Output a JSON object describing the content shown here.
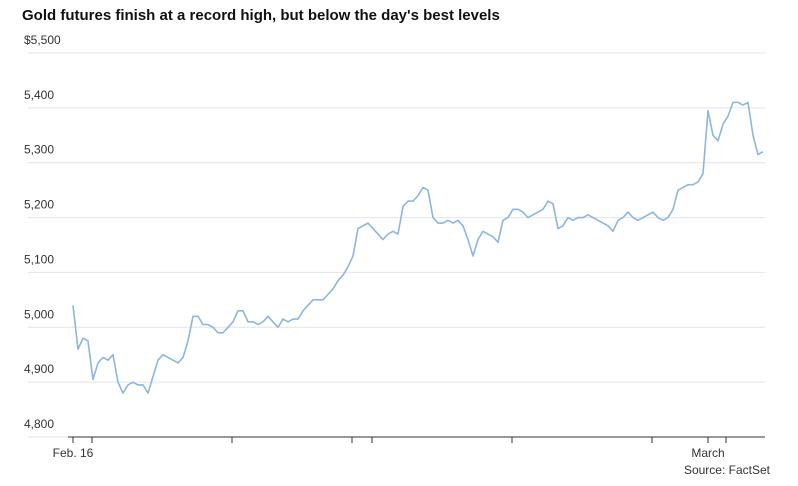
{
  "chart_data": {
    "type": "line",
    "title": "Gold futures finish at a record high, but below the day's best levels",
    "source": "Source: FactSet",
    "categories": [
      "Feb. 16",
      null,
      null,
      null,
      null,
      null,
      null,
      null,
      null,
      null,
      null,
      null,
      null,
      null,
      null,
      null,
      null,
      null,
      null,
      null,
      null,
      null,
      null,
      null,
      null,
      null,
      null,
      null,
      null,
      null,
      null,
      null,
      null,
      null,
      null,
      null,
      null,
      null,
      null,
      null,
      null,
      null,
      null,
      null,
      null,
      null,
      null,
      null,
      null,
      null,
      null,
      null,
      null,
      null,
      null,
      null,
      null,
      null,
      null,
      null,
      null,
      null,
      null,
      null,
      null,
      null,
      null,
      null,
      null,
      null,
      null,
      null,
      null,
      null,
      null,
      null,
      null,
      null,
      null,
      null,
      null,
      null,
      null,
      null,
      null,
      null,
      null,
      null,
      null,
      null,
      null,
      null,
      null,
      null,
      null,
      null,
      null,
      null,
      null,
      null,
      null,
      null,
      null,
      null,
      null,
      null,
      null,
      null,
      null,
      null,
      null,
      null,
      null,
      null,
      null,
      null,
      null,
      null,
      null,
      null,
      null,
      null,
      null,
      null,
      null,
      null,
      null,
      "March",
      null,
      null,
      null,
      null,
      null,
      null,
      null,
      null,
      null,
      null,
      null
    ],
    "series": [
      {
        "name": "Gold futures",
        "color": "#8cb6e0",
        "values": [
          5040,
          4960,
          4980,
          4975,
          4905,
          4935,
          4945,
          4940,
          4950,
          4900,
          4880,
          4895,
          4900,
          4895,
          4895,
          4880,
          4910,
          4940,
          4950,
          4945,
          4940,
          4935,
          4945,
          4975,
          5020,
          5020,
          5005,
          5005,
          5000,
          4990,
          4990,
          5000,
          5010,
          5030,
          5030,
          5010,
          5010,
          5005,
          5010,
          5020,
          5010,
          5000,
          5015,
          5010,
          5015,
          5015,
          5030,
          5040,
          5050,
          5050,
          5050,
          5060,
          5070,
          5085,
          5095,
          5110,
          5130,
          5180,
          5185,
          5190,
          5180,
          5170,
          5160,
          5170,
          5175,
          5170,
          5220,
          5230,
          5230,
          5240,
          5255,
          5250,
          5200,
          5190,
          5190,
          5195,
          5190,
          5195,
          5185,
          5160,
          5130,
          5160,
          5175,
          5170,
          5165,
          5155,
          5195,
          5200,
          5215,
          5215,
          5210,
          5200,
          5205,
          5210,
          5215,
          5230,
          5225,
          5180,
          5185,
          5200,
          5195,
          5200,
          5200,
          5205,
          5200,
          5195,
          5190,
          5185,
          5175,
          5195,
          5200,
          5210,
          5200,
          5195,
          5200,
          5205,
          5210,
          5200,
          5195,
          5200,
          5215,
          5250,
          5255,
          5260,
          5260,
          5265,
          5280,
          5395,
          5350,
          5340,
          5370,
          5385,
          5410,
          5410,
          5405,
          5410,
          5350,
          5315,
          5320
        ]
      }
    ],
    "ylim": [
      4800,
      5500
    ],
    "yticks": [
      {
        "value": 4800,
        "label": "4,800"
      },
      {
        "value": 4900,
        "label": "4,900"
      },
      {
        "value": 5000,
        "label": "5,000"
      },
      {
        "value": 5100,
        "label": "5,100"
      },
      {
        "value": 5200,
        "label": "5,200"
      },
      {
        "value": 5300,
        "label": "5,300"
      },
      {
        "value": 5400,
        "label": "5,400"
      },
      {
        "value": 5500,
        "label": "$5,500"
      }
    ],
    "grid": true
  }
}
